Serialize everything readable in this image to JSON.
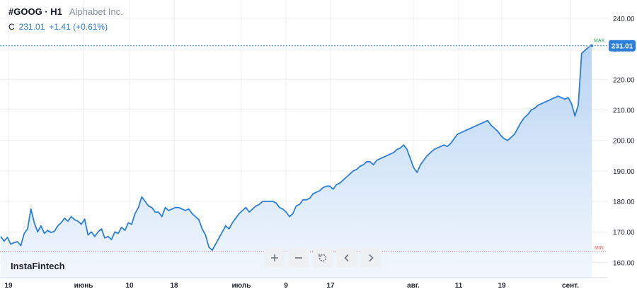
{
  "header": {
    "symbol": "#GOOG · H1",
    "company": "Alphabet Inc.",
    "close_label": "C",
    "close_value": "231.01",
    "change": "+1.41 (+0.61%)"
  },
  "brand": "InstaFintech",
  "toolbar": [
    {
      "name": "zoom-in-button",
      "icon": "plus-icon"
    },
    {
      "name": "zoom-out-button",
      "icon": "minus-icon"
    },
    {
      "name": "reset-button",
      "icon": "reset-icon"
    },
    {
      "name": "scroll-left-button",
      "icon": "chevron-left-icon"
    },
    {
      "name": "scroll-right-button",
      "icon": "chevron-right-icon"
    }
  ],
  "colors": {
    "line": "#2b7fd8",
    "area_top": "#b9d5f3",
    "area_bottom": "#f2f7fd",
    "max_marker": "#1fa35b",
    "min_marker": "#e0565b",
    "last_price_line": "#2b7fd8",
    "grid": "#eceef2",
    "axis_text": "#1e222d"
  },
  "chart_data": {
    "type": "area",
    "title": "",
    "xlabel": "",
    "ylabel": "",
    "ylim": [
      155,
      246
    ],
    "y_ticks": [
      160,
      170,
      180,
      190,
      200,
      210,
      220,
      230,
      240
    ],
    "y_tick_labels": [
      "160.00",
      "170.00",
      "180.00",
      "190.00",
      "200.00",
      "210.00",
      "220.00",
      "230.00",
      "240.00"
    ],
    "x_ticks": [
      "19",
      "июнь",
      "10",
      "18",
      "июль",
      "9",
      "17",
      "авг.",
      "11",
      "19",
      "сент."
    ],
    "grid": true,
    "last_value": 231.01,
    "last_value_label": "231.01",
    "max_label": "MAX",
    "min_label": "MIN",
    "max_value": 231.01,
    "min_value": 163.6,
    "series": [
      {
        "values": [
          168.5,
          167.0,
          168.2,
          166.0,
          166.5,
          166.8,
          165.5,
          169.5,
          171.0,
          177.5,
          173.0,
          170.0,
          172.0,
          169.5,
          170.5,
          169.8,
          170.2,
          172.0,
          173.0,
          174.5,
          173.5,
          175.0,
          174.0,
          173.5,
          172.5,
          174.2,
          169.0,
          170.0,
          168.5,
          170.0,
          171.0,
          168.0,
          168.5,
          167.5,
          170.0,
          169.5,
          171.5,
          170.5,
          173.0,
          172.5,
          176.0,
          178.0,
          181.5,
          180.0,
          178.5,
          178.0,
          176.5,
          176.5,
          175.0,
          178.0,
          177.0,
          177.5,
          178.0,
          178.0,
          177.5,
          177.0,
          177.5,
          176.0,
          175.0,
          174.0,
          171.0,
          169.0,
          165.0,
          164.0,
          166.0,
          168.0,
          170.0,
          172.0,
          171.0,
          173.0,
          174.5,
          176.0,
          177.0,
          178.0,
          176.5,
          177.5,
          178.5,
          179.0,
          180.0,
          180.0,
          180.0,
          180.0,
          179.5,
          178.0,
          177.5,
          176.5,
          175.0,
          176.0,
          178.5,
          179.0,
          180.5,
          180.5,
          181.0,
          182.5,
          183.0,
          183.5,
          184.5,
          185.0,
          185.0,
          184.0,
          185.5,
          186.0,
          187.0,
          188.0,
          189.0,
          190.0,
          190.5,
          191.5,
          192.0,
          193.0,
          193.0,
          192.0,
          193.5,
          194.0,
          194.5,
          195.0,
          195.5,
          196.0,
          197.0,
          197.5,
          198.5,
          197.0,
          194.0,
          191.0,
          189.5,
          192.0,
          193.5,
          195.0,
          196.0,
          197.0,
          197.5,
          198.0,
          198.5,
          198.0,
          199.0,
          200.5,
          202.0,
          202.5,
          203.0,
          203.5,
          204.0,
          204.5,
          205.0,
          205.5,
          206.0,
          206.5,
          205.0,
          204.0,
          203.0,
          201.5,
          200.5,
          200.0,
          201.0,
          202.0,
          204.0,
          206.0,
          207.5,
          208.5,
          210.0,
          210.5,
          211.5,
          212.0,
          212.5,
          213.0,
          213.5,
          214.0,
          214.5,
          214.0,
          213.5,
          214.0,
          212.0,
          208.0,
          211.5,
          228.5,
          229.5,
          230.5,
          231.01
        ]
      }
    ]
  }
}
